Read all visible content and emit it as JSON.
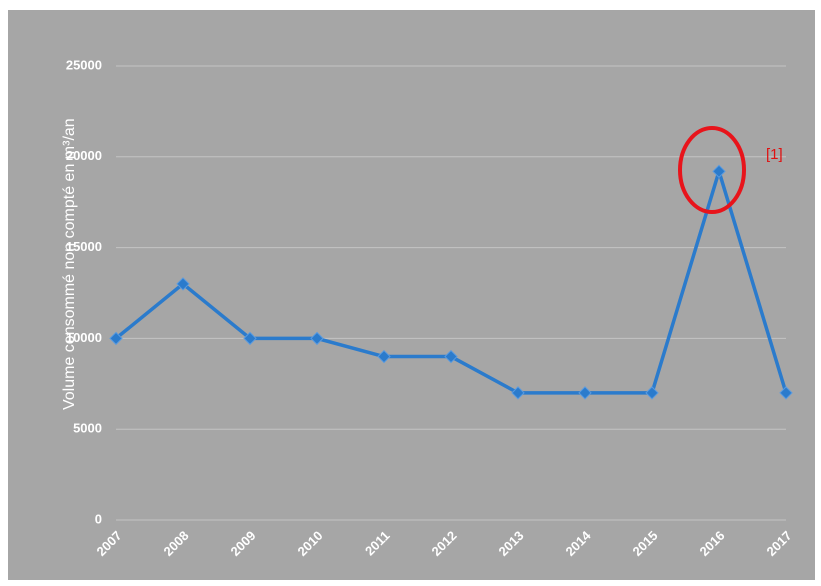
{
  "chart_data": {
    "type": "line",
    "y_label": "Volume consommé non compté en m³/an",
    "annotation": "[1]",
    "categories": [
      "2007",
      "2008",
      "2009",
      "2010",
      "2011",
      "2012",
      "2013",
      "2014",
      "2015",
      "2016",
      "2017"
    ],
    "series": [
      {
        "name": "Volume",
        "color": "#2b7bcc",
        "values": [
          10000,
          13000,
          10000,
          10000,
          9000,
          9000,
          7000,
          7000,
          7000,
          19200,
          7000
        ]
      }
    ],
    "ylim": [
      0,
      25000
    ],
    "yticks": [
      0,
      5000,
      10000,
      15000,
      20000,
      25000
    ],
    "grid": true
  }
}
